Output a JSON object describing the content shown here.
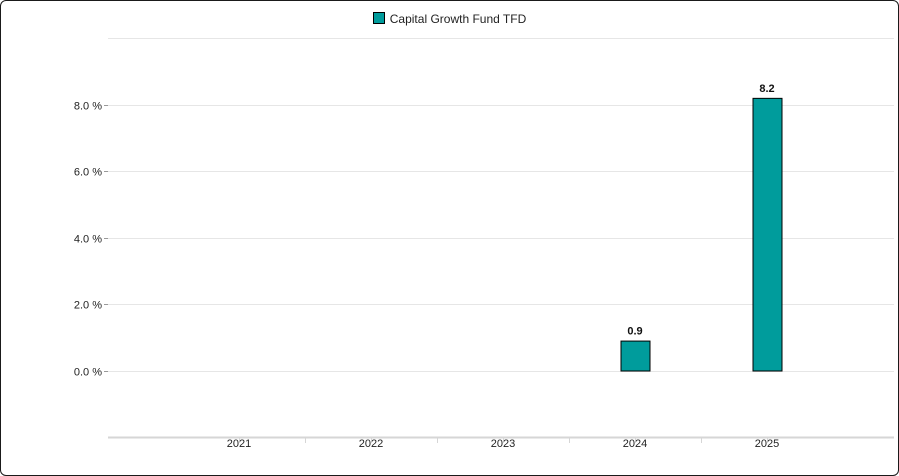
{
  "chart_data": {
    "type": "bar",
    "categories": [
      "2021",
      "2022",
      "2023",
      "2024",
      "2025"
    ],
    "series": [
      {
        "name": "Capital Growth Fund TFD",
        "values": [
          null,
          null,
          null,
          0.9,
          8.2
        ],
        "color": "#009c9c"
      }
    ],
    "data_labels": [
      "",
      "",
      "",
      "0.9",
      "8.2"
    ],
    "y_ticks": [
      0,
      2,
      4,
      6,
      8
    ],
    "y_tick_labels": [
      "0.0 %",
      "2.0 %",
      "4.0 %",
      "6.0 %",
      "8.0 %"
    ],
    "ylim": [
      -2,
      10
    ],
    "grid": true,
    "legend_position": "top-center"
  }
}
